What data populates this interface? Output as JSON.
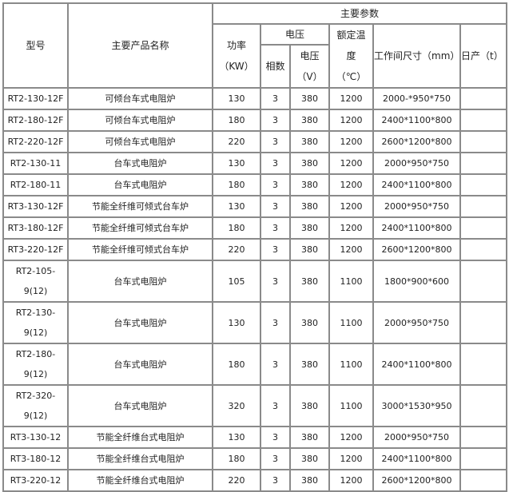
{
  "header": {
    "model": "型号",
    "product_name": "主要产品名称",
    "main_params": "主要参数",
    "power": "功率",
    "power_unit": "（KW）",
    "voltage_group": "电压",
    "phases": "相数",
    "voltage": "电压",
    "voltage_unit": "（V）",
    "rated_temp": "额定温",
    "rated_temp_2": "度",
    "rated_temp_unit": "（℃）",
    "work_size": "工作间尺寸（mm）",
    "daily_output": "日产（t）"
  },
  "rows": [
    {
      "model": "RT2-130-12F",
      "name": "可倾台车式电阻炉",
      "power": "130",
      "phases": "3",
      "voltage": "380",
      "temp": "1200",
      "size": "2000-*950*750",
      "output": ""
    },
    {
      "model": "RT2-180-12F",
      "name": "可倾台车式电阻炉",
      "power": "180",
      "phases": "3",
      "voltage": "380",
      "temp": "1200",
      "size": "2400*1100*800",
      "output": ""
    },
    {
      "model": "RT2-220-12F",
      "name": "可倾台车式电阻炉",
      "power": "220",
      "phases": "3",
      "voltage": "380",
      "temp": "1200",
      "size": "2600*1200*800",
      "output": ""
    },
    {
      "model": "RT2-130-11",
      "name": "台车式电阻炉",
      "power": "130",
      "phases": "3",
      "voltage": "380",
      "temp": "1200",
      "size": "2000*950*750",
      "output": ""
    },
    {
      "model": "RT2-180-11",
      "name": "台车式电阻炉",
      "power": "180",
      "phases": "3",
      "voltage": "380",
      "temp": "1200",
      "size": "2400*1100*800",
      "output": ""
    },
    {
      "model": "RT3-130-12F",
      "name": "节能全纤维可倾式台车炉",
      "power": "130",
      "phases": "3",
      "voltage": "380",
      "temp": "1200",
      "size": "2000*950*750",
      "output": ""
    },
    {
      "model": "RT3-180-12F",
      "name": "节能全纤维可倾式台车炉",
      "power": "180",
      "phases": "3",
      "voltage": "380",
      "temp": "1200",
      "size": "2400*1100*800",
      "output": ""
    },
    {
      "model": "RT3-220-12F",
      "name": "节能全纤维可倾式台车炉",
      "power": "220",
      "phases": "3",
      "voltage": "380",
      "temp": "1200",
      "size": "2600*1200*800",
      "output": ""
    },
    {
      "model": "RT2-105-9(12)",
      "name": "台车式电阻炉",
      "power": "105",
      "phases": "3",
      "voltage": "380",
      "temp": "1100",
      "size": "1800*900*600",
      "output": ""
    },
    {
      "model": "RT2-130-9(12)",
      "name": "台车式电阻炉",
      "power": "130",
      "phases": "3",
      "voltage": "380",
      "temp": "1100",
      "size": "2000*950*750",
      "output": ""
    },
    {
      "model": "RT2-180-9(12)",
      "name": "台车式电阻炉",
      "power": "180",
      "phases": "3",
      "voltage": "380",
      "temp": "1100",
      "size": "2400*1100*800",
      "output": ""
    },
    {
      "model": "RT2-320-9(12)",
      "name": "台车式电阻炉",
      "power": "320",
      "phases": "3",
      "voltage": "380",
      "temp": "1100",
      "size": "3000*1530*950",
      "output": ""
    },
    {
      "model": "RT3-130-12",
      "name": "节能全纤维台式电阻炉",
      "power": "130",
      "phases": "3",
      "voltage": "380",
      "temp": "1200",
      "size": "2000*950*750",
      "output": ""
    },
    {
      "model": "RT3-180-12",
      "name": "节能全纤维台式电阻炉",
      "power": "180",
      "phases": "3",
      "voltage": "380",
      "temp": "1200",
      "size": "2400*1100*800",
      "output": ""
    },
    {
      "model": "RT3-220-12",
      "name": "节能全纤维台式电阻炉",
      "power": "220",
      "phases": "3",
      "voltage": "380",
      "temp": "1200",
      "size": "2600*1200*800",
      "output": ""
    }
  ]
}
